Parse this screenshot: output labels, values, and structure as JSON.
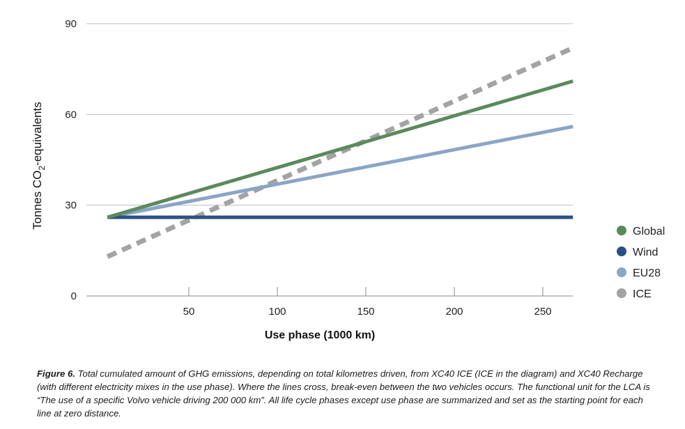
{
  "chart_data": {
    "type": "line",
    "title": "",
    "xlabel": "Use phase (1000 km)",
    "ylabel_prefix": "Tonnes CO",
    "ylabel_sub": "2",
    "ylabel_suffix": "-equivalents",
    "xlim": [
      0,
      272
    ],
    "ylim": [
      0,
      90
    ],
    "xticks": [
      50,
      100,
      150,
      200,
      250
    ],
    "yticks": [
      0,
      30,
      60,
      90
    ],
    "grid": true,
    "legend_position": "right",
    "series": [
      {
        "name": "Global",
        "color": "#5a8a5c",
        "style": "solid",
        "points": [
          [
            0,
            26
          ],
          [
            263,
            71
          ]
        ]
      },
      {
        "name": "Wind",
        "color": "#2c4f85",
        "style": "solid",
        "points": [
          [
            0,
            26
          ],
          [
            263,
            26
          ]
        ]
      },
      {
        "name": "EU28",
        "color": "#8aa5c6",
        "style": "solid",
        "points": [
          [
            0,
            26
          ],
          [
            263,
            56
          ]
        ]
      },
      {
        "name": "ICE",
        "color": "#a3a3a3",
        "style": "dashed",
        "points": [
          [
            0,
            13
          ],
          [
            263,
            82
          ]
        ]
      }
    ]
  },
  "caption": {
    "label": "Figure 6.",
    "text": "Total cumulated amount of GHG emissions, depending on total kilometres driven, from XC40 ICE (ICE in the diagram) and XC40 Recharge (with different electricity mixes in the use phase). Where the lines cross, break-even between the two vehicles occurs. The functional unit for the LCA is “The use of a specific Volvo vehicle driving 200 000 km”. All life cycle phases except use phase are summarized and set as the starting point for each line at zero distance."
  }
}
